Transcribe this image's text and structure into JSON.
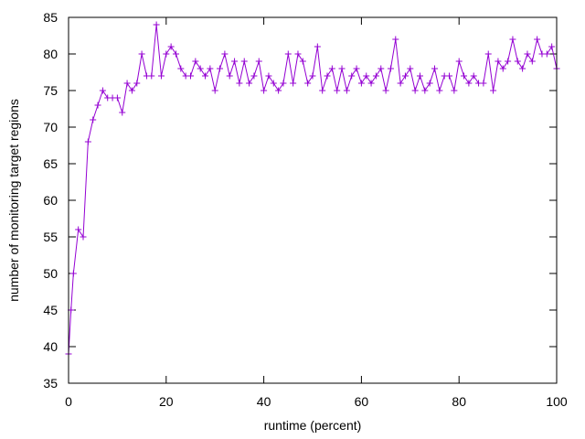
{
  "chart_data": {
    "type": "line",
    "title": "",
    "xlabel": "runtime (percent)",
    "ylabel": "number of monitoring target regions",
    "xlim": [
      0,
      100
    ],
    "ylim": [
      35,
      85
    ],
    "xticks": [
      0,
      20,
      40,
      60,
      80,
      100
    ],
    "yticks": [
      35,
      40,
      45,
      50,
      55,
      60,
      65,
      70,
      75,
      80,
      85
    ],
    "grid": false,
    "legend": "none",
    "series": [
      {
        "color": "#9400d3",
        "marker": "plus",
        "x": [
          0,
          0.5,
          1,
          2,
          3,
          4,
          5,
          6,
          7,
          8,
          9,
          10,
          11,
          12,
          13,
          14,
          15,
          16,
          17,
          18,
          19,
          20,
          21,
          22,
          23,
          24,
          25,
          26,
          27,
          28,
          29,
          30,
          31,
          32,
          33,
          34,
          35,
          36,
          37,
          38,
          39,
          40,
          41,
          42,
          43,
          44,
          45,
          46,
          47,
          48,
          49,
          50,
          51,
          52,
          53,
          54,
          55,
          56,
          57,
          58,
          59,
          60,
          61,
          62,
          63,
          64,
          65,
          66,
          67,
          68,
          69,
          70,
          71,
          72,
          73,
          74,
          75,
          76,
          77,
          78,
          79,
          80,
          81,
          82,
          83,
          84,
          85,
          86,
          87,
          88,
          89,
          90,
          91,
          92,
          93,
          94,
          95,
          96,
          97,
          98,
          99,
          100
        ],
        "y": [
          39,
          45,
          50,
          56,
          55,
          68,
          71,
          73,
          75,
          74,
          74,
          74,
          72,
          76,
          75,
          76,
          80,
          77,
          77,
          84,
          77,
          80,
          81,
          80,
          78,
          77,
          77,
          79,
          78,
          77,
          78,
          75,
          78,
          80,
          77,
          79,
          76,
          79,
          76,
          77,
          79,
          75,
          77,
          76,
          75,
          76,
          80,
          76,
          80,
          79,
          76,
          77,
          81,
          75,
          77,
          78,
          75,
          78,
          75,
          77,
          78,
          76,
          77,
          76,
          77,
          78,
          75,
          78,
          82,
          76,
          77,
          78,
          75,
          77,
          75,
          76,
          78,
          75,
          77,
          77,
          75,
          79,
          77,
          76,
          77,
          76,
          76,
          80,
          75,
          79,
          78,
          79,
          82,
          79,
          78,
          80,
          79,
          82,
          80,
          80,
          81,
          78
        ]
      }
    ]
  }
}
